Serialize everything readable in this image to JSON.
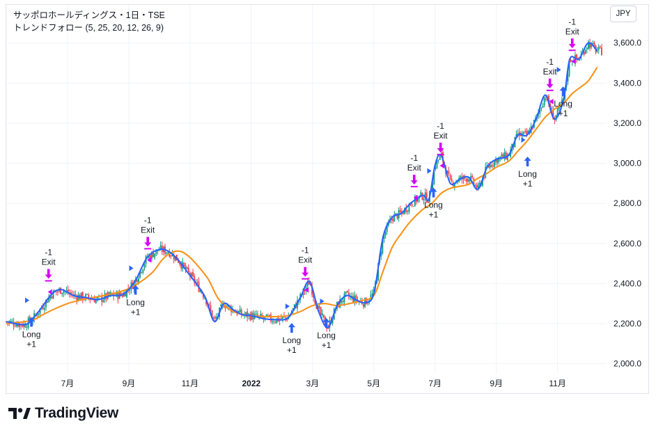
{
  "header": {
    "title": "サッポロホールディングス・1日・TSE",
    "indicator": "トレンドフォロー (5, 25, 20, 12, 26, 9)",
    "currency": "JPY"
  },
  "brand": {
    "name": "TradingView"
  },
  "colors": {
    "fast_ma": "#2962ff",
    "slow_ma": "#f7931a",
    "up_candle": "#089981",
    "down_candle": "#f23645",
    "long_signal": "#2962ff",
    "exit_signal": "#d500f9",
    "grid": "#f0f3fa"
  },
  "chart_data": {
    "type": "line",
    "title": "サッポロホールディングス・1日・TSE",
    "y_axis": {
      "min": 1950,
      "max": 3790,
      "position": "right",
      "ticks": [
        2000,
        2200,
        2400,
        2600,
        2800,
        3000,
        3200,
        3400,
        3600
      ],
      "tick_labels": [
        "2,000.0",
        "2,200.0",
        "2,400.0",
        "2,600.0",
        "2,800.0",
        "3,000.0",
        "3,200.0",
        "3,400.0",
        "3,600.0"
      ]
    },
    "x_axis": {
      "range_months": [
        0,
        19.6
      ],
      "ticks": [
        {
          "m": 2,
          "label": "7月"
        },
        {
          "m": 4,
          "label": "9月"
        },
        {
          "m": 6,
          "label": "11月"
        },
        {
          "m": 8,
          "label": "2022"
        },
        {
          "m": 10,
          "label": "3月"
        },
        {
          "m": 12,
          "label": "5月"
        },
        {
          "m": 14,
          "label": "7月"
        },
        {
          "m": 16,
          "label": "9月"
        },
        {
          "m": 18,
          "label": "11月"
        }
      ]
    },
    "series": [
      {
        "name": "Fast MA (5)",
        "color": "#2962ff",
        "points": [
          [
            0.0,
            2210
          ],
          [
            0.6,
            2195
          ],
          [
            0.9,
            2230
          ],
          [
            1.2,
            2290
          ],
          [
            1.5,
            2350
          ],
          [
            1.8,
            2370
          ],
          [
            2.2,
            2340
          ],
          [
            2.6,
            2330
          ],
          [
            3.0,
            2320
          ],
          [
            3.4,
            2340
          ],
          [
            3.8,
            2345
          ],
          [
            4.2,
            2410
          ],
          [
            4.6,
            2530
          ],
          [
            5.0,
            2570
          ],
          [
            5.3,
            2560
          ],
          [
            5.6,
            2520
          ],
          [
            5.9,
            2460
          ],
          [
            6.2,
            2400
          ],
          [
            6.5,
            2330
          ],
          [
            6.8,
            2210
          ],
          [
            7.1,
            2300
          ],
          [
            7.4,
            2270
          ],
          [
            7.7,
            2245
          ],
          [
            8.0,
            2240
          ],
          [
            8.4,
            2225
          ],
          [
            8.8,
            2220
          ],
          [
            9.2,
            2230
          ],
          [
            9.6,
            2330
          ],
          [
            9.9,
            2410
          ],
          [
            10.2,
            2260
          ],
          [
            10.5,
            2180
          ],
          [
            10.8,
            2290
          ],
          [
            11.1,
            2340
          ],
          [
            11.4,
            2320
          ],
          [
            11.7,
            2305
          ],
          [
            12.0,
            2350
          ],
          [
            12.3,
            2630
          ],
          [
            12.6,
            2730
          ],
          [
            12.9,
            2750
          ],
          [
            13.2,
            2800
          ],
          [
            13.6,
            2840
          ],
          [
            13.8,
            2820
          ],
          [
            14.0,
            2990
          ],
          [
            14.2,
            3040
          ],
          [
            14.5,
            2900
          ],
          [
            14.8,
            2920
          ],
          [
            15.1,
            2930
          ],
          [
            15.4,
            2870
          ],
          [
            15.7,
            2980
          ],
          [
            16.0,
            3020
          ],
          [
            16.4,
            3040
          ],
          [
            16.7,
            3140
          ],
          [
            17.0,
            3140
          ],
          [
            17.3,
            3220
          ],
          [
            17.6,
            3340
          ],
          [
            17.9,
            3220
          ],
          [
            18.2,
            3320
          ],
          [
            18.4,
            3520
          ],
          [
            18.7,
            3520
          ],
          [
            19.0,
            3600
          ],
          [
            19.3,
            3560
          ]
        ]
      },
      {
        "name": "Slow MA (25)",
        "color": "#f7931a",
        "points": [
          [
            0.0,
            2200
          ],
          [
            0.8,
            2215
          ],
          [
            1.2,
            2245
          ],
          [
            1.6,
            2275
          ],
          [
            2.0,
            2300
          ],
          [
            2.5,
            2320
          ],
          [
            3.0,
            2335
          ],
          [
            3.5,
            2350
          ],
          [
            4.0,
            2375
          ],
          [
            4.4,
            2410
          ],
          [
            4.8,
            2460
          ],
          [
            5.1,
            2520
          ],
          [
            5.4,
            2555
          ],
          [
            5.7,
            2560
          ],
          [
            6.0,
            2530
          ],
          [
            6.3,
            2480
          ],
          [
            6.6,
            2420
          ],
          [
            6.9,
            2330
          ],
          [
            7.2,
            2280
          ],
          [
            7.6,
            2250
          ],
          [
            8.0,
            2240
          ],
          [
            8.4,
            2235
          ],
          [
            8.8,
            2235
          ],
          [
            9.2,
            2240
          ],
          [
            9.6,
            2260
          ],
          [
            10.0,
            2290
          ],
          [
            10.4,
            2300
          ],
          [
            10.8,
            2290
          ],
          [
            11.2,
            2300
          ],
          [
            11.6,
            2315
          ],
          [
            12.0,
            2340
          ],
          [
            12.3,
            2460
          ],
          [
            12.6,
            2580
          ],
          [
            12.9,
            2650
          ],
          [
            13.2,
            2710
          ],
          [
            13.6,
            2770
          ],
          [
            13.9,
            2800
          ],
          [
            14.2,
            2850
          ],
          [
            14.5,
            2875
          ],
          [
            14.8,
            2885
          ],
          [
            15.1,
            2895
          ],
          [
            15.4,
            2925
          ],
          [
            15.7,
            2950
          ],
          [
            16.0,
            2980
          ],
          [
            16.4,
            3010
          ],
          [
            16.7,
            3060
          ],
          [
            17.0,
            3110
          ],
          [
            17.3,
            3170
          ],
          [
            17.6,
            3230
          ],
          [
            17.9,
            3270
          ],
          [
            18.2,
            3300
          ],
          [
            18.5,
            3350
          ],
          [
            18.8,
            3385
          ],
          [
            19.0,
            3410
          ],
          [
            19.3,
            3480
          ]
        ]
      }
    ],
    "signals": [
      {
        "type": "long",
        "label": "Long",
        "qty": "+1",
        "m": 0.82,
        "price": 2240
      },
      {
        "type": "exit",
        "label": "Exit",
        "qty": "-1",
        "m": 1.38,
        "price": 2410
      },
      {
        "type": "long",
        "label": "Long",
        "qty": "+1",
        "m": 4.22,
        "price": 2400
      },
      {
        "type": "exit",
        "label": "Exit",
        "qty": "-1",
        "m": 4.62,
        "price": 2570
      },
      {
        "type": "long",
        "label": "Long",
        "qty": "+1",
        "m": 9.32,
        "price": 2210
      },
      {
        "type": "exit",
        "label": "Exit",
        "qty": "-1",
        "m": 9.76,
        "price": 2420
      },
      {
        "type": "long",
        "label": "Long",
        "qty": "+1",
        "m": 10.45,
        "price": 2235
      },
      {
        "type": "exit",
        "label": "Exit",
        "qty": "-1",
        "m": 13.32,
        "price": 2880
      },
      {
        "type": "long",
        "label": "Long",
        "qty": "+1",
        "m": 13.95,
        "price": 2885
      },
      {
        "type": "exit",
        "label": "Exit",
        "qty": "-1",
        "m": 14.18,
        "price": 3040
      },
      {
        "type": "long",
        "label": "Long",
        "qty": "+1",
        "m": 17.02,
        "price": 3040
      },
      {
        "type": "exit",
        "label": "Exit",
        "qty": "-1",
        "m": 17.75,
        "price": 3360
      },
      {
        "type": "long",
        "label": "Long",
        "qty": "+1",
        "m": 18.18,
        "price": 3390
      },
      {
        "type": "exit",
        "label": "Exit",
        "qty": "-1",
        "m": 18.48,
        "price": 3560
      }
    ]
  }
}
